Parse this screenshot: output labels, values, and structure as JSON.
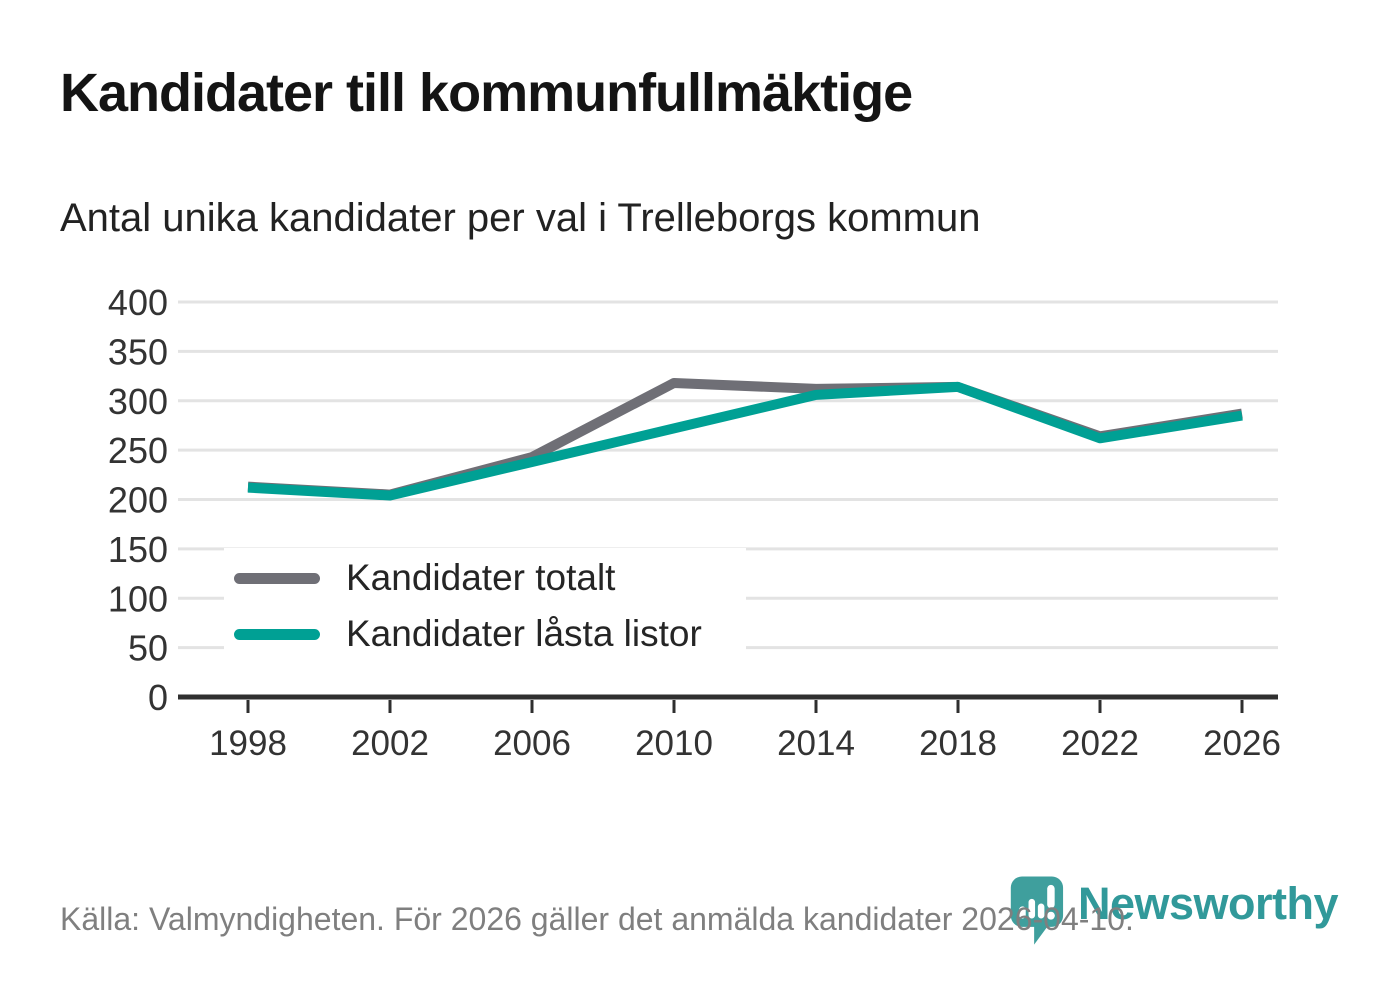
{
  "header": {
    "title": "Kandidater till kommunfullmäktige",
    "subtitle": "Antal unika kandidater per val i Trelleborgs kommun"
  },
  "legend": {
    "items": [
      {
        "label": "Kandidater totalt",
        "color": "#6f6f76"
      },
      {
        "label": "Kandidater låsta listor",
        "color": "#00a094"
      }
    ]
  },
  "footer": {
    "source": "Källa: Valmyndigheten. För 2026 gäller det anmälda kandidater 2026-04-10.",
    "brand": "Newsworthy",
    "brand_color": "#31999a"
  },
  "colors": {
    "grid": "#e3e3e3",
    "axis": "#2f2f2f",
    "tick_label": "#333333",
    "series_total": "#6f6f76",
    "series_locked": "#00a094"
  },
  "chart_data": {
    "type": "line",
    "x": [
      1998,
      2002,
      2006,
      2010,
      2014,
      2018,
      2022,
      2026
    ],
    "series": [
      {
        "name": "Kandidater totalt",
        "color": "#6f6f76",
        "values": [
          213,
          205,
          243,
          318,
          312,
          314,
          264,
          287
        ]
      },
      {
        "name": "Kandidater låsta listor",
        "color": "#00a094",
        "values": [
          212,
          204,
          238,
          272,
          306,
          314,
          262,
          285
        ]
      }
    ],
    "title": "Kandidater till kommunfullmäktige",
    "subtitle": "Antal unika kandidater per val i Trelleborgs kommun",
    "xlabel": "",
    "ylabel": "",
    "ylim": [
      0,
      400
    ],
    "yticks": [
      0,
      50,
      100,
      150,
      200,
      250,
      300,
      350,
      400
    ],
    "grid": true,
    "legend_position": "inside-lower-left"
  }
}
